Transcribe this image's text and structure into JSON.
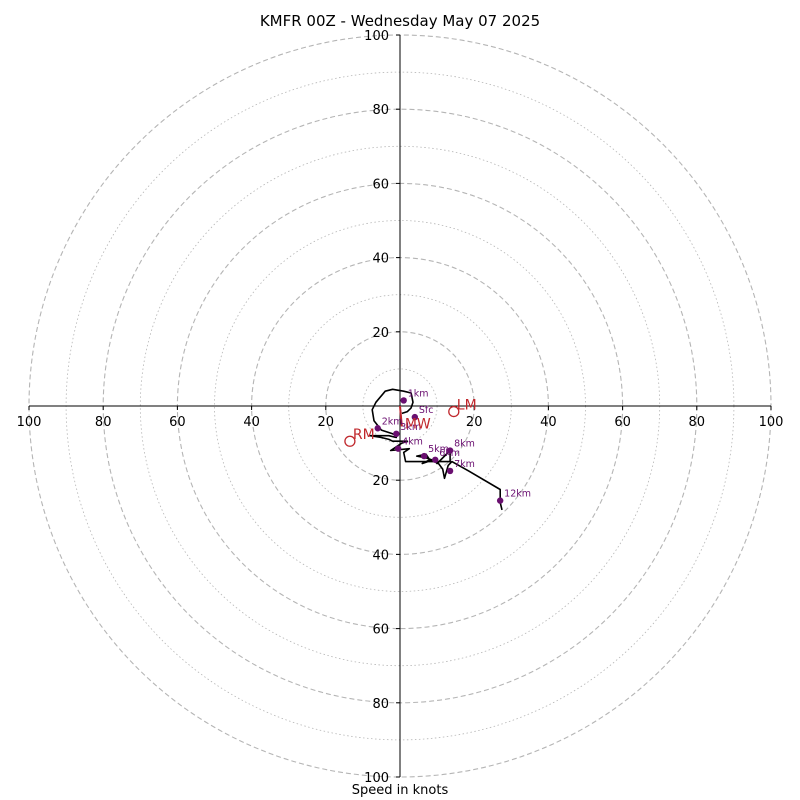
{
  "chart_data": {
    "type": "hodograph",
    "title": "KMFR 00Z - Wednesday May 07 2025",
    "xlabel": "Speed in knots",
    "units": "knots",
    "range": [
      -100,
      100
    ],
    "ring_major_step": 20,
    "ring_minor_step": 10,
    "x_ticks": [
      "100",
      "80",
      "60",
      "40",
      "20",
      "20",
      "40",
      "60",
      "80",
      "100"
    ],
    "y_ticks": [
      "100",
      "80",
      "60",
      "40",
      "20",
      "20",
      "40",
      "60",
      "80",
      "100"
    ],
    "hodograph": [
      [
        0.5,
        -2.0
      ],
      [
        2.0,
        -1.5
      ],
      [
        3.0,
        -0.5
      ],
      [
        3.5,
        1.0
      ],
      [
        3.0,
        3.5
      ],
      [
        1.0,
        4.0
      ],
      [
        -2.0,
        4.5
      ],
      [
        -4.0,
        4.0
      ],
      [
        -6.5,
        1.0
      ],
      [
        -7.5,
        -1.0
      ],
      [
        -7.0,
        -4.0
      ],
      [
        -5.0,
        -6.5
      ],
      [
        -2.0,
        -7.5
      ],
      [
        -1.0,
        -8.0
      ],
      [
        -1.0,
        -8.5
      ],
      [
        -3.0,
        -8.0
      ],
      [
        -5.0,
        -8.0
      ],
      [
        -8.0,
        -8.0
      ],
      [
        -5.0,
        -8.5
      ],
      [
        -3.0,
        -9.0
      ],
      [
        -2.0,
        -9.5
      ],
      [
        2.0,
        -9.5
      ],
      [
        0.5,
        -10.0
      ],
      [
        -1.0,
        -11.0
      ],
      [
        -2.5,
        -12.0
      ],
      [
        2.5,
        -11.5
      ],
      [
        1.0,
        -12.5
      ],
      [
        1.5,
        -15.0
      ],
      [
        10.0,
        -15.0
      ],
      [
        7.0,
        -14.0
      ],
      [
        4.5,
        -13.5
      ],
      [
        7.0,
        -13.0
      ],
      [
        8.0,
        -14.5
      ],
      [
        6.0,
        -15.5
      ],
      [
        9.0,
        -14.5
      ],
      [
        10.0,
        -15.5
      ],
      [
        13.5,
        -12.0
      ],
      [
        13.5,
        -15.0
      ],
      [
        10.0,
        -15.0
      ],
      [
        11.5,
        -17.0
      ],
      [
        12.0,
        -19.5
      ],
      [
        13.0,
        -16.0
      ],
      [
        14.0,
        -15.0
      ],
      [
        18.5,
        -17.5
      ],
      [
        27.0,
        -22.5
      ],
      [
        27.0,
        -26.0
      ],
      [
        27.5,
        -28.0
      ]
    ],
    "markers": [
      {
        "label": "Sfc",
        "u": 4.0,
        "v": -3.0
      },
      {
        "label": "1km",
        "u": 1.0,
        "v": 1.5
      },
      {
        "label": "2km",
        "u": -6.0,
        "v": -6.0
      },
      {
        "label": "3km",
        "u": -1.0,
        "v": -7.5
      },
      {
        "label": "4km",
        "u": -0.5,
        "v": -11.5
      },
      {
        "label": "5km",
        "u": 6.5,
        "v": -13.5
      },
      {
        "label": "6km",
        "u": 9.5,
        "v": -14.5
      },
      {
        "label": "7km",
        "u": 13.5,
        "v": -17.5
      },
      {
        "label": "8km",
        "u": 13.5,
        "v": -12.0
      },
      {
        "label": "12km",
        "u": 27.0,
        "v": -25.5
      }
    ],
    "storm_motion": [
      {
        "label": "LM",
        "u": 14.5,
        "v": -1.5
      },
      {
        "label": "RM",
        "u": -13.5,
        "v": -9.5
      }
    ],
    "mean_wind": {
      "label": "MW",
      "u": 0.5,
      "v": -5.5
    },
    "colors": {
      "trace": "#000000",
      "marker": "#6a0f70",
      "storm": "#c0282d",
      "ring": "#b5b5b5",
      "axis": "#000000"
    }
  }
}
